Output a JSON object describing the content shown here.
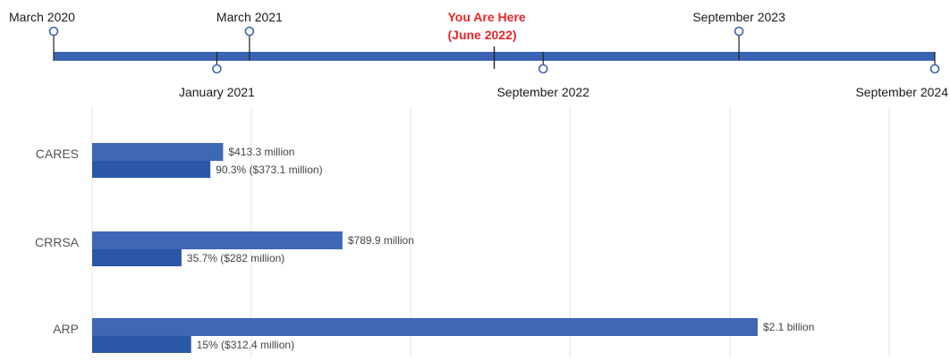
{
  "timeline": {
    "events": [
      {
        "label": "March 2020",
        "date": "2020-03",
        "position": "above"
      },
      {
        "label": "January 2021",
        "date": "2021-01",
        "position": "below"
      },
      {
        "label": "March 2021",
        "date": "2021-03",
        "position": "above"
      },
      {
        "label": "September 2022",
        "date": "2022-09",
        "position": "below"
      },
      {
        "label": "September 2023",
        "date": "2023-09",
        "position": "above"
      },
      {
        "label": "September 2024",
        "date": "2024-09",
        "position": "below"
      }
    ],
    "current": {
      "line1": "You Are Here",
      "line2": "(June 2022)",
      "date": "2022-06"
    }
  },
  "chart_data": {
    "type": "bar",
    "orientation": "horizontal",
    "categories": [
      "CARES",
      "CRRSA",
      "ARP"
    ],
    "series": [
      {
        "values": [
          413.3,
          789.9,
          2100
        ]
      },
      {
        "values": [
          373.1,
          282,
          312.4
        ]
      }
    ],
    "data_labels": [
      [
        "$413.3 million",
        "$789.9 million",
        "$2.1 billion"
      ],
      [
        "90.3% ($373.1 million)",
        "35.7% ($282 million)",
        "15% ($312.4 million)"
      ]
    ],
    "units": "million",
    "grid": true,
    "colors": {
      "total": "#3e67b5",
      "spent": "#2a57a7",
      "timeline": "#3a63b3",
      "current": "#e8262a"
    }
  }
}
